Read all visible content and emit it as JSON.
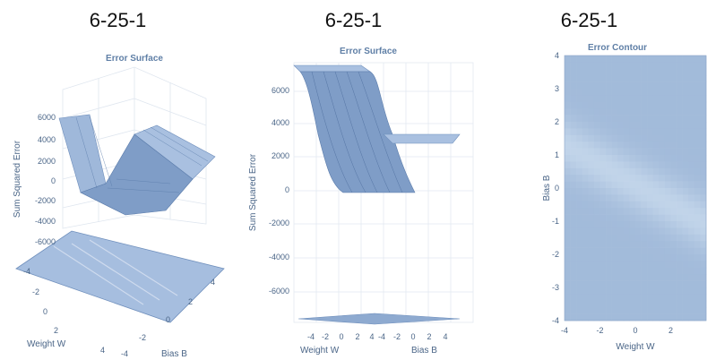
{
  "panels": [
    {
      "heading": "6-25-1"
    },
    {
      "heading": "6-25-1"
    },
    {
      "heading": "6-25-1"
    }
  ],
  "chart_data": [
    {
      "type": "surface3d",
      "title": "Error Surface",
      "xlabel": "Weight W",
      "ylabel": "Bias B",
      "zlabel": "Sum Squared Error",
      "z_ticks": [
        6000,
        4000,
        2000,
        0,
        -2000,
        -4000,
        -6000
      ],
      "x_ticks": [
        -4,
        -2,
        0,
        2,
        4
      ],
      "y_ticks": [
        -4,
        -2,
        0,
        2,
        4
      ],
      "zlim": [
        -7000,
        7000
      ],
      "grid": true,
      "color": "#8eaad0"
    },
    {
      "type": "surface3d",
      "title": "Error Surface",
      "xlabel": "Weight W",
      "ylabel": "Bias B",
      "zlabel": "Sum Squared Error",
      "z_ticks": [
        6000,
        4000,
        2000,
        0,
        -2000,
        -4000,
        -6000
      ],
      "x_ticks": [
        -4,
        -2,
        0,
        2,
        4
      ],
      "y_ticks": [
        -4,
        -2,
        0,
        2,
        4
      ],
      "zlim": [
        -7500,
        7500
      ],
      "grid": true,
      "color": "#8eaad0"
    },
    {
      "type": "heatmap",
      "title": "Error Contour",
      "xlabel": "Weight W",
      "ylabel": "Bias B",
      "x_ticks": [
        -4,
        -2,
        0,
        2
      ],
      "y_ticks": [
        4,
        3,
        2,
        1,
        0,
        -1,
        -2,
        -3,
        -4
      ],
      "xlim": [
        -4,
        4
      ],
      "ylim": [
        -4,
        4
      ],
      "color": "#8eaad0"
    }
  ]
}
